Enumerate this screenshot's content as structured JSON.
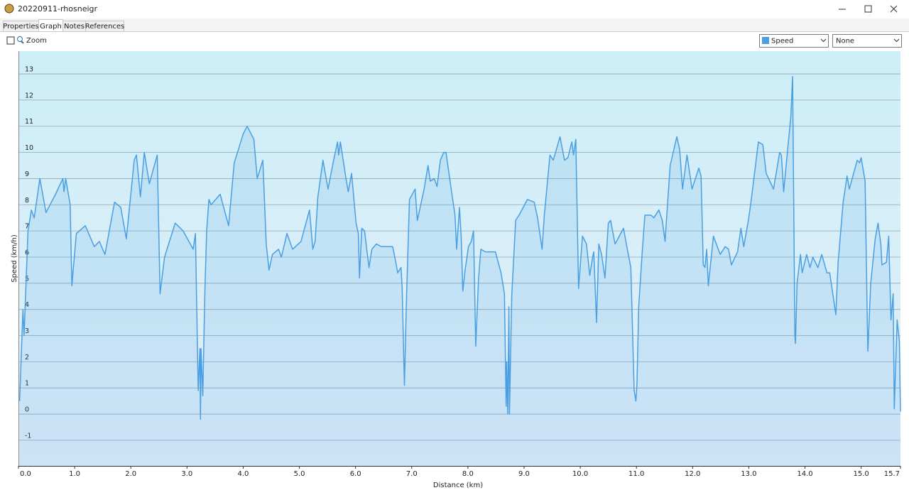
{
  "window": {
    "title": "20220911-rhosneigr"
  },
  "tabs": [
    "Properties",
    "Graph",
    "Notes",
    "References"
  ],
  "toolbar": {
    "zoom": "Zoom",
    "second_select": "None"
  },
  "chart_data": {
    "type": "line",
    "xlabel": "Distance  (km)",
    "ylabel": "Speed (km/h)",
    "x": [
      0.02,
      0.08,
      0.1,
      0.17,
      0.23,
      0.28,
      0.38,
      0.49,
      0.66,
      0.79,
      0.81,
      0.84,
      0.92,
      0.95,
      1.03,
      1.19,
      1.35,
      1.44,
      1.54,
      1.71,
      1.82,
      1.92,
      2.06,
      2.1,
      2.17,
      2.24,
      2.33,
      2.47,
      2.52,
      2.6,
      2.79,
      2.93,
      3.11,
      3.15,
      3.2,
      3.23,
      3.24,
      3.25,
      3.28,
      3.32,
      3.35,
      3.39,
      3.43,
      3.59,
      3.74,
      3.84,
      4.0,
      4.07,
      4.19,
      4.25,
      4.35,
      4.41,
      4.46,
      4.52,
      4.63,
      4.68,
      4.78,
      4.88,
      5.03,
      5.18,
      5.24,
      5.28,
      5.33,
      5.42,
      5.51,
      5.61,
      5.68,
      5.7,
      5.73,
      5.83,
      5.87,
      5.93,
      6.01,
      6.05,
      6.07,
      6.11,
      6.16,
      6.24,
      6.29,
      6.37,
      6.46,
      6.56,
      6.66,
      6.7,
      6.75,
      6.81,
      6.83,
      6.87,
      6.91,
      6.96,
      7.06,
      7.1,
      7.22,
      7.29,
      7.33,
      7.4,
      7.45,
      7.51,
      7.57,
      7.61,
      7.69,
      7.77,
      7.8,
      7.85,
      7.88,
      7.91,
      7.95,
      8.01,
      8.06,
      8.1,
      8.14,
      8.19,
      8.23,
      8.31,
      8.49,
      8.59,
      8.65,
      8.68,
      8.69,
      8.71,
      8.73,
      8.74,
      8.78,
      8.85,
      8.91,
      9.06,
      9.18,
      9.24,
      9.32,
      9.36,
      9.46,
      9.52,
      9.64,
      9.72,
      9.78,
      9.85,
      9.88,
      9.92,
      9.97,
      10.04,
      10.11,
      10.17,
      10.22,
      10.24,
      10.29,
      10.33,
      10.38,
      10.44,
      10.5,
      10.54,
      10.62,
      10.77,
      10.82,
      10.9,
      10.96,
      10.99,
      11.01,
      11.04,
      11.1,
      11.15,
      11.26,
      11.31,
      11.4,
      11.46,
      11.51,
      11.55,
      11.6,
      11.72,
      11.77,
      11.82,
      11.9,
      11.99,
      12.11,
      12.15,
      12.19,
      12.22,
      12.25,
      12.28,
      12.37,
      12.49,
      12.58,
      12.64,
      12.69,
      12.8,
      12.86,
      12.91,
      13.0,
      13.05,
      13.17,
      13.25,
      13.31,
      13.44,
      13.55,
      13.58,
      13.62,
      13.75,
      13.78,
      13.82,
      13.83,
      13.86,
      13.92,
      13.95,
      14.03,
      14.09,
      14.14,
      14.23,
      14.3,
      14.39,
      14.44,
      14.53,
      14.55,
      14.59,
      14.68,
      14.75,
      14.79,
      14.84,
      14.93,
      14.97,
      15.0,
      15.07,
      15.11,
      15.12,
      15.17,
      15.25,
      15.3,
      15.35,
      15.37,
      15.45,
      15.49,
      15.53,
      15.57,
      15.59,
      15.64,
      15.68,
      15.7
    ],
    "series": [
      {
        "name": "Speed",
        "color": "#4a9fe2",
        "values": [
          0.5,
          4.0,
          3.0,
          7.0,
          7.8,
          7.5,
          9.0,
          7.7,
          8.4,
          9.0,
          8.5,
          9.0,
          8.0,
          4.9,
          6.9,
          7.2,
          6.4,
          6.6,
          6.1,
          8.1,
          7.9,
          6.7,
          9.7,
          9.9,
          8.3,
          10.0,
          8.8,
          9.9,
          4.6,
          6.0,
          7.3,
          7.0,
          6.3,
          6.9,
          0.9,
          2.5,
          -0.2,
          2.5,
          0.7,
          4.8,
          7.0,
          8.2,
          8.0,
          8.4,
          7.2,
          9.6,
          10.7,
          11.0,
          10.5,
          9.0,
          9.7,
          6.5,
          5.5,
          6.1,
          6.3,
          6.0,
          6.9,
          6.3,
          6.6,
          7.8,
          6.3,
          6.6,
          8.3,
          9.7,
          8.6,
          9.7,
          10.4,
          9.9,
          10.4,
          9.0,
          8.5,
          9.2,
          7.3,
          6.9,
          5.2,
          7.1,
          7.0,
          5.6,
          6.3,
          6.5,
          6.4,
          6.4,
          6.4,
          6.0,
          5.4,
          5.6,
          4.8,
          1.1,
          4.6,
          8.2,
          8.6,
          7.4,
          8.6,
          9.5,
          8.9,
          9.0,
          8.7,
          9.7,
          10.0,
          10.0,
          8.8,
          7.6,
          6.3,
          7.9,
          6.8,
          4.7,
          5.5,
          6.4,
          6.6,
          7.0,
          2.6,
          5.2,
          6.3,
          6.2,
          6.2,
          5.4,
          4.6,
          0.3,
          2.0,
          0,
          4.1,
          0,
          4.5,
          7.4,
          7.6,
          8.2,
          8.1,
          7.5,
          6.3,
          7.6,
          9.9,
          9.7,
          10.6,
          9.7,
          9.8,
          10.4,
          9.9,
          10.5,
          4.8,
          6.8,
          6.5,
          5.3,
          6.0,
          6.2,
          3.5,
          6.5,
          6.1,
          5.2,
          7.3,
          7.4,
          6.5,
          7.1,
          6.5,
          5.6,
          0.9,
          0.5,
          1.2,
          4.1,
          6.1,
          7.6,
          7.6,
          7.5,
          7.8,
          7.4,
          6.6,
          7.9,
          9.5,
          10.6,
          10.1,
          8.6,
          9.9,
          8.6,
          9.4,
          9.1,
          5.7,
          5.6,
          6.3,
          4.9,
          6.8,
          6.1,
          6.4,
          6.3,
          5.7,
          6.2,
          7.1,
          6.4,
          7.5,
          8.3,
          10.4,
          10.3,
          9.2,
          8.6,
          10.0,
          9.9,
          8.5,
          11.4,
          12.9,
          3.0,
          2.7,
          5.0,
          6.1,
          5.4,
          6.1,
          5.6,
          6.0,
          5.6,
          6.1,
          5.4,
          5.4,
          4.1,
          3.8,
          5.8,
          8.1,
          9.1,
          8.6,
          9.0,
          9.7,
          9.6,
          9.8,
          8.9,
          3.5,
          2.4,
          5.0,
          6.7,
          7.3,
          6.5,
          5.7,
          5.8,
          6.8,
          3.6,
          4.6,
          0.2,
          3.6,
          2.8,
          0.1
        ]
      }
    ],
    "xlim": [
      0,
      15.7
    ],
    "xticks": [
      {
        "value": 0,
        "label": "0.0"
      },
      {
        "value": 1,
        "label": "1.0"
      },
      {
        "value": 2,
        "label": "2.0"
      },
      {
        "value": 3,
        "label": "3.0"
      },
      {
        "value": 4,
        "label": "4.0"
      },
      {
        "value": 5,
        "label": "5.0"
      },
      {
        "value": 6,
        "label": "6.0"
      },
      {
        "value": 7,
        "label": "7.0"
      },
      {
        "value": 8,
        "label": "8.0"
      },
      {
        "value": 9,
        "label": "9.0"
      },
      {
        "value": 10,
        "label": "10.0"
      },
      {
        "value": 11,
        "label": "11.0"
      },
      {
        "value": 12,
        "label": "12.0"
      },
      {
        "value": 13,
        "label": "13.0"
      },
      {
        "value": 14,
        "label": "14.0"
      },
      {
        "value": 15,
        "label": "15.0"
      },
      15.7
    ],
    "ylim": [
      -1.98,
      13.87
    ],
    "yticks": [
      -1,
      0,
      1,
      2,
      3,
      4,
      5,
      6,
      7,
      8,
      9,
      10,
      11,
      12,
      13
    ],
    "grid": true
  }
}
